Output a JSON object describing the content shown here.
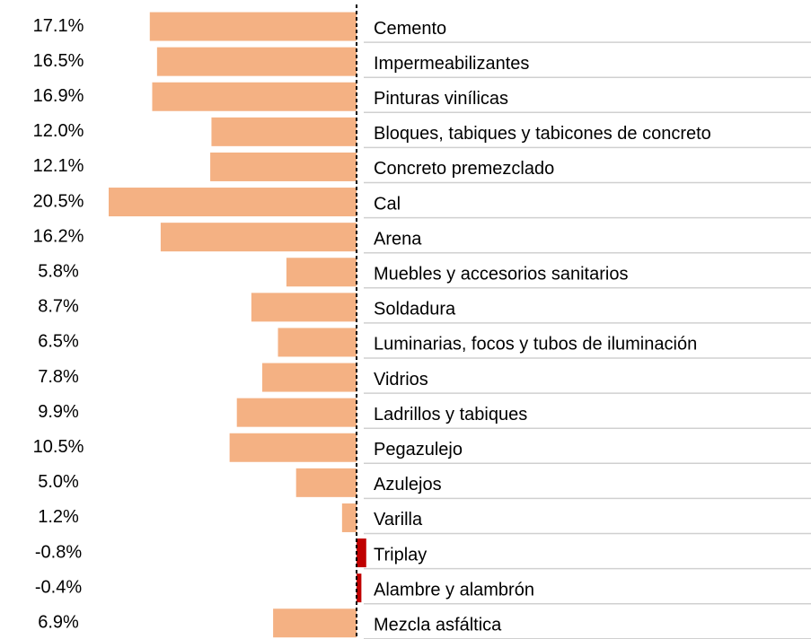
{
  "chart_data": {
    "type": "bar",
    "orientation": "horizontal",
    "categories": [
      "Cemento",
      "Impermeabilizantes",
      "Pinturas vinílicas",
      "Bloques, tabiques y tabicones de concreto",
      "Concreto premezclado",
      "Cal",
      "Arena",
      "Muebles y accesorios sanitarios",
      "Soldadura",
      "Luminarias, focos y tubos de iluminación",
      "Vidrios",
      "Ladrillos y tabiques",
      "Pegazulejo",
      "Azulejos",
      "Varilla",
      "Triplay",
      "Alambre y alambrón",
      "Mezcla asfáltica"
    ],
    "values": [
      17.1,
      16.5,
      16.9,
      12.0,
      12.1,
      20.5,
      16.2,
      5.8,
      8.7,
      6.5,
      7.8,
      9.9,
      10.5,
      5.0,
      1.2,
      -0.8,
      -0.4,
      6.9
    ],
    "value_labels": [
      "17.1%",
      "16.5%",
      "16.9%",
      "12.0%",
      "12.1%",
      "20.5%",
      "16.2%",
      "5.8%",
      "8.7%",
      "6.5%",
      "7.8%",
      "9.9%",
      "10.5%",
      "5.0%",
      "1.2%",
      "-0.8%",
      "-0.4%",
      "6.9%"
    ],
    "color": "#f4b183",
    "negative_color": "#c00000"
  }
}
